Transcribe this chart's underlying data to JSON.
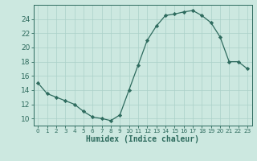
{
  "x": [
    0,
    1,
    2,
    3,
    4,
    5,
    6,
    7,
    8,
    9,
    10,
    11,
    12,
    13,
    14,
    15,
    16,
    17,
    18,
    19,
    20,
    21,
    22,
    23
  ],
  "y": [
    15.0,
    13.5,
    13.0,
    12.5,
    12.0,
    11.0,
    10.2,
    10.0,
    9.7,
    10.5,
    14.0,
    17.5,
    21.0,
    23.0,
    24.5,
    24.7,
    25.0,
    25.2,
    24.5,
    23.5,
    21.5,
    18.0,
    18.0,
    17.0
  ],
  "line_color": "#2e6b5e",
  "marker": "D",
  "marker_size": 2.2,
  "bg_color": "#cce8e0",
  "grid_color": "#aad0c8",
  "xlabel": "Humidex (Indice chaleur)",
  "xlim": [
    -0.5,
    23.5
  ],
  "ylim": [
    9.0,
    26.0
  ],
  "yticks": [
    10,
    12,
    14,
    16,
    18,
    20,
    22,
    24
  ],
  "xticks": [
    0,
    1,
    2,
    3,
    4,
    5,
    6,
    7,
    8,
    9,
    10,
    11,
    12,
    13,
    14,
    15,
    16,
    17,
    18,
    19,
    20,
    21,
    22,
    23
  ],
  "tick_color": "#2e6b5e",
  "label_color": "#2e6b5e",
  "spine_color": "#2e6b5e",
  "xlabel_fontsize": 7,
  "ytick_fontsize": 6.5,
  "xtick_fontsize": 5.2
}
